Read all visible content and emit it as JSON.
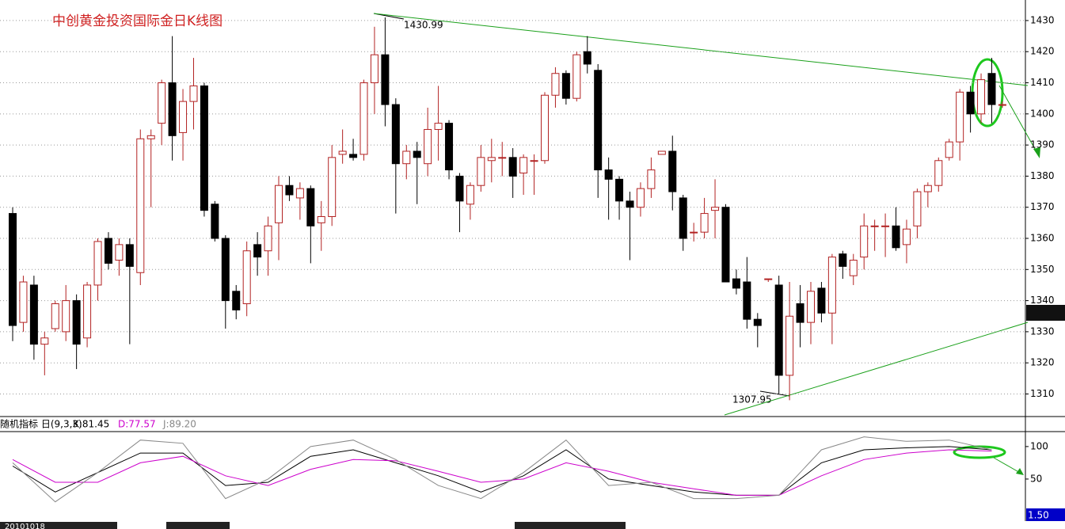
{
  "chart_data": [
    {
      "type": "candlestick",
      "title": "中创黄金投资国际金日K线图",
      "annotations": [
        "1430.99",
        "1307.95"
      ],
      "up_color": "#b22222",
      "down_color": "#000000",
      "ylim": [
        1303,
        1436.6
      ],
      "yticks": [
        1310,
        1320,
        1330,
        1340,
        1350,
        1360,
        1370,
        1380,
        1390,
        1400,
        1410,
        1420,
        1430
      ],
      "grid": true,
      "open": [
        1368,
        1333,
        1345,
        1326,
        1331,
        1330,
        1340,
        1328,
        1345,
        1360,
        1353,
        1358,
        1349,
        1392,
        1397,
        1410,
        1394,
        1404,
        1409,
        1371,
        1360,
        1343,
        1339,
        1358,
        1356,
        1365,
        1377,
        1373,
        1376,
        1365,
        1367,
        1387,
        1387,
        1387,
        1410,
        1419,
        1403,
        1384,
        1388,
        1384,
        1395,
        1397,
        1380,
        1371,
        1377,
        1385,
        1386,
        1386,
        1381,
        1385,
        1385,
        1406,
        1413,
        1405,
        1420,
        1414,
        1382,
        1379,
        1372,
        1370,
        1376,
        1387,
        1388,
        1373,
        1362,
        1362,
        1369,
        1370,
        1347,
        1346,
        1334,
        1347,
        1345,
        1316,
        1339,
        1333,
        1344,
        1336,
        1355,
        1348,
        1354,
        1364,
        1364,
        1364,
        1358,
        1364,
        1375,
        1377,
        1386,
        1391,
        1407,
        1400,
        1413,
        1403
      ],
      "high": [
        1370,
        1348,
        1348,
        1330,
        1340,
        1345,
        1342,
        1346,
        1360,
        1362,
        1360,
        1360,
        1395,
        1395,
        1411,
        1425,
        1408,
        1418,
        1410,
        1372,
        1361,
        1345,
        1359,
        1362,
        1367,
        1380,
        1380,
        1378,
        1377,
        1372,
        1390,
        1395,
        1392,
        1411,
        1428,
        1431,
        1405,
        1390,
        1391,
        1402,
        1409,
        1398,
        1381,
        1378,
        1390,
        1392,
        1391,
        1389,
        1387,
        1387,
        1407,
        1415,
        1414,
        1420,
        1425,
        1416,
        1386,
        1380,
        1375,
        1378,
        1386,
        1388,
        1393,
        1374,
        1365,
        1373,
        1379,
        1371,
        1350,
        1354,
        1336,
        1347,
        1348,
        1346,
        1345,
        1346,
        1346,
        1355,
        1356,
        1355,
        1368,
        1366,
        1368,
        1370,
        1366,
        1376,
        1378,
        1386,
        1392,
        1408,
        1409,
        1413,
        1418,
        1404
      ],
      "low": [
        1327,
        1330,
        1321,
        1316,
        1330,
        1327,
        1318,
        1325,
        1340,
        1350,
        1348,
        1326,
        1345,
        1370,
        1390,
        1385,
        1385,
        1395,
        1367,
        1359,
        1331,
        1334,
        1335,
        1348,
        1348,
        1353,
        1372,
        1366,
        1352,
        1356,
        1364,
        1384,
        1385,
        1385,
        1400,
        1396,
        1368,
        1379,
        1371,
        1380,
        1385,
        1379,
        1362,
        1366,
        1375,
        1378,
        1380,
        1373,
        1374,
        1374,
        1384,
        1402,
        1403,
        1404,
        1413,
        1373,
        1366,
        1366,
        1353,
        1367,
        1373,
        1387,
        1369,
        1356,
        1359,
        1360,
        1360,
        1346,
        1342,
        1331,
        1325,
        1346,
        1310,
        1308,
        1325,
        1326,
        1333,
        1326,
        1347,
        1345,
        1350,
        1356,
        1354,
        1356,
        1352,
        1360,
        1370,
        1375,
        1385,
        1385,
        1394,
        1397,
        1397,
        1402
      ],
      "close": [
        1332,
        1346,
        1326,
        1328,
        1339,
        1340,
        1326,
        1345,
        1359,
        1352,
        1358,
        1351,
        1392,
        1393,
        1410,
        1393,
        1404,
        1409,
        1369,
        1360,
        1340,
        1337,
        1356,
        1354,
        1364,
        1377,
        1374,
        1376,
        1364,
        1367,
        1386,
        1388,
        1386,
        1410,
        1419,
        1403,
        1384,
        1388,
        1386,
        1395,
        1397,
        1382,
        1372,
        1377,
        1386,
        1386,
        1386,
        1380,
        1386,
        1385,
        1406,
        1413,
        1405,
        1419,
        1416,
        1382,
        1379,
        1372,
        1370,
        1376,
        1382,
        1388,
        1375,
        1360,
        1362,
        1368,
        1370,
        1346,
        1344,
        1334,
        1332,
        1347,
        1316,
        1335,
        1333,
        1343,
        1336,
        1354,
        1351,
        1353,
        1364,
        1364,
        1364,
        1357,
        1363,
        1375,
        1377,
        1385,
        1391,
        1407,
        1400,
        1411,
        1403,
        1403
      ]
    },
    {
      "type": "line",
      "title": "随机指标 日(9,3,3)",
      "ylim": [
        -11,
        123
      ],
      "yticks": [
        50,
        100
      ],
      "box_label": "1.50",
      "date_label": "20101018",
      "x": [
        0,
        4,
        8,
        12,
        16,
        20,
        24,
        28,
        32,
        36,
        40,
        44,
        48,
        52,
        56,
        60,
        64,
        68,
        72,
        76,
        80,
        84,
        88,
        92
      ],
      "series": [
        {
          "name": "K:81.45",
          "color": "#000000",
          "values": [
            70,
            30,
            60,
            90,
            90,
            40,
            45,
            85,
            95,
            75,
            55,
            30,
            55,
            95,
            50,
            40,
            30,
            25,
            25,
            75,
            95,
            98,
            100,
            95
          ]
        },
        {
          "name": "D:77.57",
          "color": "#cc00cc",
          "values": [
            80,
            45,
            45,
            75,
            85,
            55,
            40,
            65,
            80,
            78,
            62,
            45,
            50,
            75,
            62,
            45,
            35,
            25,
            25,
            55,
            80,
            90,
            95,
            93
          ]
        },
        {
          "name": "J:89.20",
          "color": "#888888",
          "values": [
            75,
            15,
            60,
            110,
            105,
            20,
            50,
            100,
            110,
            80,
            40,
            20,
            60,
            110,
            40,
            45,
            20,
            20,
            25,
            95,
            115,
            108,
            110,
            95
          ]
        }
      ]
    }
  ]
}
